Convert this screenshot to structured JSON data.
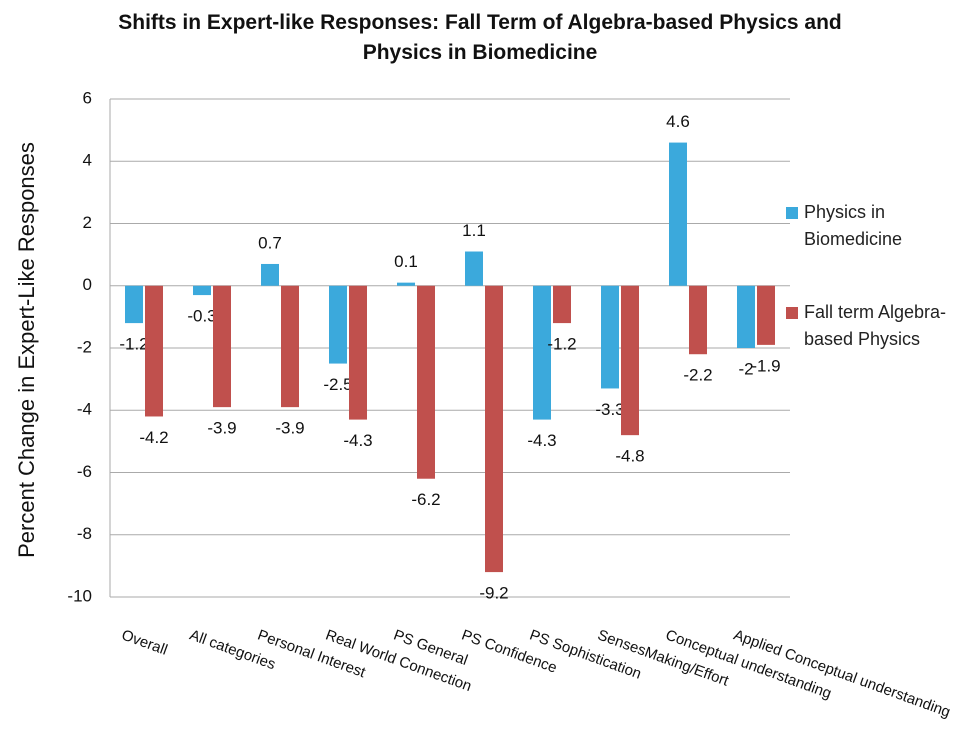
{
  "chart_data": {
    "type": "bar",
    "title": "Shifts in Expert-like Responses: Fall Term of Algebra-based Physics and Physics in Biomedicine",
    "ylabel": "Percent Change in  Expert-Like Responses",
    "categories": [
      "Overall",
      "All categories",
      "Personal Interest",
      "Real World Connection",
      "PS General",
      "PS Confidence",
      "PS Sophistication",
      "SensesMaking/Effort",
      "Conceptual understanding",
      "Applied Conceptual understanding"
    ],
    "series": [
      {
        "name": "Physics in Biomedicine",
        "color": "#3ba9dc",
        "values": [
          -1.2,
          -0.3,
          0.7,
          -2.5,
          0.1,
          1.1,
          -4.3,
          -3.3,
          4.6,
          -2
        ]
      },
      {
        "name": "Fall term Algebra-based Physics",
        "color": "#c0504d",
        "values": [
          -4.2,
          -3.9,
          -3.9,
          -4.3,
          -6.2,
          -9.2,
          -1.2,
          -4.8,
          -2.2,
          -1.9
        ]
      }
    ],
    "ylim": [
      -10,
      6
    ],
    "yticks": [
      -10,
      -8,
      -6,
      -4,
      -2,
      0,
      2,
      4,
      6
    ],
    "grid": true,
    "legend": "right"
  }
}
